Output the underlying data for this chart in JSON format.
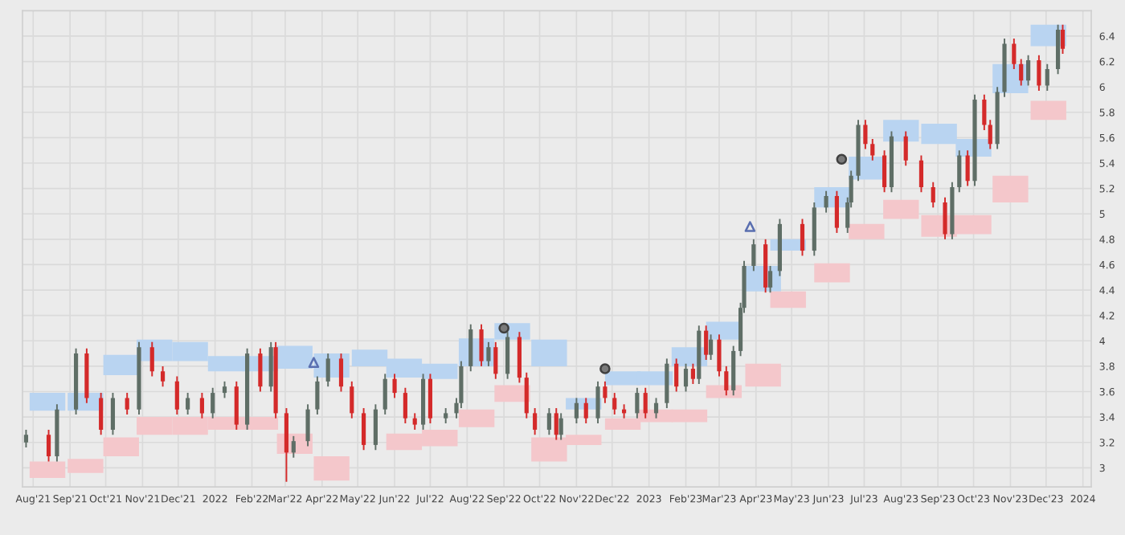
{
  "chart_data": {
    "type": "candlestick",
    "x": [
      "2021-07-26",
      "2021-08-14",
      "2021-08-21",
      "2021-09-06",
      "2021-09-15",
      "2021-09-27",
      "2021-10-07",
      "2021-10-19",
      "2021-10-29",
      "2021-11-09",
      "2021-11-18",
      "2021-11-30",
      "2021-12-09",
      "2021-12-21",
      "2021-12-30",
      "2022-01-09",
      "2022-01-19",
      "2022-01-28",
      "2022-02-08",
      "2022-02-17",
      "2022-02-21",
      "2022-03-02",
      "2022-03-08",
      "2022-03-20",
      "2022-03-28",
      "2022-04-06",
      "2022-04-17",
      "2022-04-26",
      "2022-05-06",
      "2022-05-16",
      "2022-05-24",
      "2022-06-01",
      "2022-06-10",
      "2022-06-18",
      "2022-06-25",
      "2022-07-01",
      "2022-07-14",
      "2022-07-23",
      "2022-07-27",
      "2022-08-04",
      "2022-08-13",
      "2022-08-19",
      "2022-08-25",
      "2022-09-04",
      "2022-09-14",
      "2022-09-20",
      "2022-09-27",
      "2022-10-09",
      "2022-10-15",
      "2022-10-19",
      "2022-11-01",
      "2022-11-09",
      "2022-11-19",
      "2022-11-25",
      "2022-12-03",
      "2022-12-11",
      "2022-12-22",
      "2022-12-29",
      "2023-01-07",
      "2023-01-16",
      "2023-01-24",
      "2023-02-01",
      "2023-02-07",
      "2023-02-12",
      "2023-02-18",
      "2023-02-22",
      "2023-03-01",
      "2023-03-07",
      "2023-03-13",
      "2023-03-19",
      "2023-03-22",
      "2023-03-30",
      "2023-04-09",
      "2023-04-13",
      "2023-04-21",
      "2023-05-10",
      "2023-05-20",
      "2023-05-30",
      "2023-06-08",
      "2023-06-17",
      "2023-06-20",
      "2023-06-26",
      "2023-07-02",
      "2023-07-08",
      "2023-07-18",
      "2023-07-24",
      "2023-08-05",
      "2023-08-18",
      "2023-08-28",
      "2023-09-07",
      "2023-09-13",
      "2023-09-19",
      "2023-09-26",
      "2023-10-02",
      "2023-10-10",
      "2023-10-15",
      "2023-10-21",
      "2023-10-27",
      "2023-11-04",
      "2023-11-10",
      "2023-11-16",
      "2023-11-25",
      "2023-12-02",
      "2023-12-11",
      "2023-12-15"
    ],
    "ohlc": [
      [
        3.2,
        3.3,
        3.16,
        3.26
      ],
      [
        3.26,
        3.3,
        3.05,
        3.09
      ],
      [
        3.09,
        3.5,
        3.05,
        3.46
      ],
      [
        3.46,
        3.94,
        3.42,
        3.9
      ],
      [
        3.9,
        3.94,
        3.51,
        3.55
      ],
      [
        3.55,
        3.59,
        3.26,
        3.3
      ],
      [
        3.3,
        3.59,
        3.26,
        3.55
      ],
      [
        3.55,
        3.59,
        3.42,
        3.46
      ],
      [
        3.46,
        3.99,
        3.42,
        3.95
      ],
      [
        3.95,
        3.99,
        3.72,
        3.76
      ],
      [
        3.76,
        3.8,
        3.64,
        3.68
      ],
      [
        3.68,
        3.72,
        3.42,
        3.46
      ],
      [
        3.46,
        3.59,
        3.42,
        3.55
      ],
      [
        3.55,
        3.59,
        3.39,
        3.43
      ],
      [
        3.43,
        3.63,
        3.39,
        3.59
      ],
      [
        3.59,
        3.68,
        3.55,
        3.64
      ],
      [
        3.64,
        3.68,
        3.3,
        3.34
      ],
      [
        3.34,
        3.94,
        3.3,
        3.9
      ],
      [
        3.9,
        3.94,
        3.6,
        3.64
      ],
      [
        3.64,
        3.99,
        3.6,
        3.95
      ],
      [
        3.95,
        3.99,
        3.39,
        3.43
      ],
      [
        3.43,
        3.47,
        2.89,
        3.12
      ],
      [
        3.12,
        3.25,
        3.08,
        3.21
      ],
      [
        3.21,
        3.5,
        3.17,
        3.46
      ],
      [
        3.46,
        3.72,
        3.42,
        3.68
      ],
      [
        3.68,
        3.9,
        3.64,
        3.86
      ],
      [
        3.86,
        3.9,
        3.6,
        3.64
      ],
      [
        3.64,
        3.68,
        3.39,
        3.43
      ],
      [
        3.43,
        3.47,
        3.14,
        3.18
      ],
      [
        3.18,
        3.5,
        3.14,
        3.46
      ],
      [
        3.46,
        3.74,
        3.42,
        3.7
      ],
      [
        3.7,
        3.74,
        3.55,
        3.59
      ],
      [
        3.59,
        3.63,
        3.35,
        3.39
      ],
      [
        3.39,
        3.43,
        3.3,
        3.34
      ],
      [
        3.34,
        3.74,
        3.3,
        3.7
      ],
      [
        3.7,
        3.74,
        3.35,
        3.39
      ],
      [
        3.39,
        3.47,
        3.35,
        3.43
      ],
      [
        3.43,
        3.55,
        3.39,
        3.51
      ],
      [
        3.51,
        3.84,
        3.47,
        3.8
      ],
      [
        3.8,
        4.13,
        3.76,
        4.09
      ],
      [
        4.09,
        4.13,
        3.8,
        3.84
      ],
      [
        3.84,
        3.99,
        3.8,
        3.95
      ],
      [
        3.95,
        3.99,
        3.7,
        3.74
      ],
      [
        3.74,
        4.07,
        3.7,
        4.03
      ],
      [
        4.03,
        4.07,
        3.67,
        3.71
      ],
      [
        3.71,
        3.75,
        3.39,
        3.43
      ],
      [
        3.43,
        3.47,
        3.26,
        3.3
      ],
      [
        3.3,
        3.47,
        3.26,
        3.43
      ],
      [
        3.43,
        3.47,
        3.22,
        3.26
      ],
      [
        3.26,
        3.43,
        3.22,
        3.39
      ],
      [
        3.39,
        3.55,
        3.35,
        3.51
      ],
      [
        3.51,
        3.55,
        3.35,
        3.39
      ],
      [
        3.39,
        3.68,
        3.35,
        3.64
      ],
      [
        3.64,
        3.68,
        3.51,
        3.55
      ],
      [
        3.55,
        3.59,
        3.42,
        3.46
      ],
      [
        3.46,
        3.5,
        3.39,
        3.43
      ],
      [
        3.43,
        3.63,
        3.39,
        3.59
      ],
      [
        3.59,
        3.63,
        3.39,
        3.43
      ],
      [
        3.43,
        3.55,
        3.39,
        3.51
      ],
      [
        3.51,
        3.86,
        3.47,
        3.82
      ],
      [
        3.82,
        3.86,
        3.6,
        3.64
      ],
      [
        3.64,
        3.82,
        3.6,
        3.78
      ],
      [
        3.78,
        3.82,
        3.66,
        3.7
      ],
      [
        3.7,
        4.12,
        3.66,
        4.08
      ],
      [
        4.08,
        4.12,
        3.85,
        3.89
      ],
      [
        3.89,
        4.05,
        3.85,
        4.01
      ],
      [
        4.01,
        4.05,
        3.72,
        3.76
      ],
      [
        3.76,
        3.8,
        3.57,
        3.61
      ],
      [
        3.61,
        3.96,
        3.57,
        3.92
      ],
      [
        3.92,
        4.3,
        3.88,
        4.26
      ],
      [
        4.26,
        4.63,
        4.22,
        4.59
      ],
      [
        4.59,
        4.8,
        4.55,
        4.76
      ],
      [
        4.76,
        4.8,
        4.38,
        4.42
      ],
      [
        4.42,
        4.59,
        4.38,
        4.55
      ],
      [
        4.55,
        4.96,
        4.51,
        4.92
      ],
      [
        4.92,
        4.96,
        4.67,
        4.71
      ],
      [
        4.71,
        5.09,
        4.67,
        5.05
      ],
      [
        5.05,
        5.18,
        5.01,
        5.14
      ],
      [
        5.14,
        5.18,
        4.85,
        4.89
      ],
      [
        4.89,
        5.13,
        4.85,
        5.09
      ],
      [
        5.09,
        5.34,
        5.05,
        5.3
      ],
      [
        5.3,
        5.74,
        5.26,
        5.7
      ],
      [
        5.7,
        5.74,
        5.51,
        5.55
      ],
      [
        5.55,
        5.59,
        5.42,
        5.46
      ],
      [
        5.46,
        5.5,
        5.17,
        5.21
      ],
      [
        5.21,
        5.65,
        5.17,
        5.61
      ],
      [
        5.61,
        5.65,
        5.38,
        5.42
      ],
      [
        5.42,
        5.46,
        5.17,
        5.21
      ],
      [
        5.21,
        5.25,
        5.05,
        5.09
      ],
      [
        5.09,
        5.13,
        4.8,
        4.84
      ],
      [
        4.84,
        5.25,
        4.8,
        5.21
      ],
      [
        5.21,
        5.5,
        5.17,
        5.46
      ],
      [
        5.46,
        5.5,
        5.22,
        5.26
      ],
      [
        5.26,
        5.94,
        5.22,
        5.9
      ],
      [
        5.9,
        5.94,
        5.66,
        5.7
      ],
      [
        5.7,
        5.74,
        5.51,
        5.55
      ],
      [
        5.55,
        6.0,
        5.51,
        5.96
      ],
      [
        5.96,
        6.38,
        5.92,
        6.34
      ],
      [
        6.34,
        6.38,
        6.14,
        6.18
      ],
      [
        6.18,
        6.22,
        6.01,
        6.05
      ],
      [
        6.05,
        6.25,
        6.01,
        6.21
      ],
      [
        6.21,
        6.25,
        5.97,
        6.01
      ],
      [
        6.01,
        6.18,
        5.97,
        6.14
      ],
      [
        6.14,
        6.49,
        6.1,
        6.45
      ],
      [
        6.45,
        6.49,
        6.26,
        6.3
      ]
    ],
    "series": [
      {
        "type": "bar",
        "color": "#b9d4f1",
        "x": [
          "2021-08-13",
          "2021-09-14",
          "2021-10-14",
          "2021-11-11",
          "2021-12-11",
          "2022-01-10",
          "2022-02-08",
          "2022-03-09",
          "2022-04-09",
          "2022-05-11",
          "2022-06-09",
          "2022-07-09",
          "2022-08-09",
          "2022-09-08",
          "2022-10-09",
          "2022-11-07",
          "2022-12-10",
          "2023-01-06",
          "2023-02-04",
          "2023-03-05",
          "2023-04-07",
          "2023-04-28",
          "2023-06-04",
          "2023-07-03",
          "2023-08-01",
          "2023-09-02",
          "2023-10-01",
          "2023-11-01",
          "2023-12-03"
        ],
        "base": [
          3.45,
          3.45,
          3.73,
          3.84,
          3.84,
          3.76,
          3.76,
          3.78,
          3.71,
          3.8,
          3.71,
          3.7,
          3.8,
          4.01,
          3.8,
          3.46,
          3.65,
          3.65,
          3.8,
          4.01,
          4.39,
          4.71,
          5.05,
          5.27,
          5.57,
          5.55,
          5.45,
          5.95,
          6.32
        ],
        "values": [
          0.14,
          0.14,
          0.16,
          0.17,
          0.15,
          0.12,
          0.12,
          0.18,
          0.19,
          0.13,
          0.15,
          0.12,
          0.22,
          0.13,
          0.21,
          0.09,
          0.11,
          0.11,
          0.15,
          0.14,
          0.2,
          0.09,
          0.16,
          0.18,
          0.17,
          0.16,
          0.14,
          0.23,
          0.17
        ]
      },
      {
        "type": "bar",
        "color": "#f4c7cb",
        "x": [
          "2021-08-13",
          "2021-09-14",
          "2021-10-14",
          "2021-11-11",
          "2021-12-11",
          "2022-01-10",
          "2022-02-08",
          "2022-03-09",
          "2022-04-09",
          "2022-05-11",
          "2022-06-09",
          "2022-07-09",
          "2022-08-09",
          "2022-09-08",
          "2022-10-09",
          "2022-11-07",
          "2022-12-10",
          "2023-01-06",
          "2023-02-04",
          "2023-03-05",
          "2023-04-07",
          "2023-04-28",
          "2023-06-04",
          "2023-07-03",
          "2023-08-01",
          "2023-09-02",
          "2023-10-01",
          "2023-11-01",
          "2023-12-03"
        ],
        "base": [
          2.92,
          2.96,
          3.09,
          3.26,
          3.26,
          3.3,
          3.3,
          3.11,
          2.9,
          null,
          3.14,
          3.17,
          3.32,
          3.52,
          3.05,
          3.18,
          3.3,
          3.36,
          3.36,
          3.55,
          3.64,
          4.26,
          4.46,
          4.8,
          4.96,
          4.82,
          4.84,
          5.09,
          5.74
        ],
        "values": [
          0.13,
          0.11,
          0.15,
          0.14,
          0.14,
          0.1,
          0.1,
          0.16,
          0.19,
          null,
          0.13,
          0.13,
          0.14,
          0.13,
          0.19,
          0.08,
          0.09,
          0.1,
          0.1,
          0.1,
          0.18,
          0.13,
          0.15,
          0.12,
          0.15,
          0.17,
          0.15,
          0.21,
          0.15
        ]
      },
      {
        "type": "scatter",
        "marker": "triangle",
        "color": "#5a6fb0",
        "x": [
          "2022-03-25",
          "2023-03-27"
        ],
        "values": [
          3.83,
          4.9
        ]
      },
      {
        "type": "scatter",
        "marker": "circle",
        "color": "#7a7a7a",
        "x": [
          "2022-09-01",
          "2022-11-25",
          "2023-06-12"
        ],
        "values": [
          4.1,
          3.78,
          5.43
        ]
      }
    ],
    "ylim": [
      2.85,
      6.6
    ],
    "yticks": [
      3,
      3.2,
      3.4,
      3.6,
      3.8,
      4,
      4.2,
      4.4,
      4.6,
      4.8,
      5,
      5.2,
      5.4,
      5.6,
      5.8,
      6,
      6.2,
      6.4
    ],
    "xlim": [
      "2021-07-23",
      "2024-01-08"
    ],
    "xticks": [
      {
        "value": "2021-08-01",
        "label": "Aug'21"
      },
      {
        "value": "2021-09-01",
        "label": "Sep'21"
      },
      {
        "value": "2021-10-01",
        "label": "Oct'21"
      },
      {
        "value": "2021-11-01",
        "label": "Nov'21"
      },
      {
        "value": "2021-12-01",
        "label": "Dec'21"
      },
      {
        "value": "2022-01-01",
        "label": "2022"
      },
      {
        "value": "2022-02-01",
        "label": "Feb'22"
      },
      {
        "value": "2022-03-01",
        "label": "Mar'22"
      },
      {
        "value": "2022-04-01",
        "label": "Apr'22"
      },
      {
        "value": "2022-05-01",
        "label": "May'22"
      },
      {
        "value": "2022-06-01",
        "label": "Jun'22"
      },
      {
        "value": "2022-07-01",
        "label": "Jul'22"
      },
      {
        "value": "2022-08-01",
        "label": "Aug'22"
      },
      {
        "value": "2022-09-01",
        "label": "Sep'22"
      },
      {
        "value": "2022-10-01",
        "label": "Oct'22"
      },
      {
        "value": "2022-11-01",
        "label": "Nov'22"
      },
      {
        "value": "2022-12-01",
        "label": "Dec'22"
      },
      {
        "value": "2023-01-01",
        "label": "2023"
      },
      {
        "value": "2023-02-01",
        "label": "Feb'23"
      },
      {
        "value": "2023-03-01",
        "label": "Mar'23"
      },
      {
        "value": "2023-04-01",
        "label": "Apr'23"
      },
      {
        "value": "2023-05-01",
        "label": "May'23"
      },
      {
        "value": "2023-06-01",
        "label": "Jun'23"
      },
      {
        "value": "2023-07-01",
        "label": "Jul'23"
      },
      {
        "value": "2023-08-01",
        "label": "Aug'23"
      },
      {
        "value": "2023-09-01",
        "label": "Sep'23"
      },
      {
        "value": "2023-10-01",
        "label": "Oct'23"
      },
      {
        "value": "2023-11-01",
        "label": "Nov'23"
      },
      {
        "value": "2023-12-01",
        "label": "Dec'23"
      },
      {
        "value": "2024-01-01",
        "label": "2024"
      }
    ],
    "grid": true
  }
}
